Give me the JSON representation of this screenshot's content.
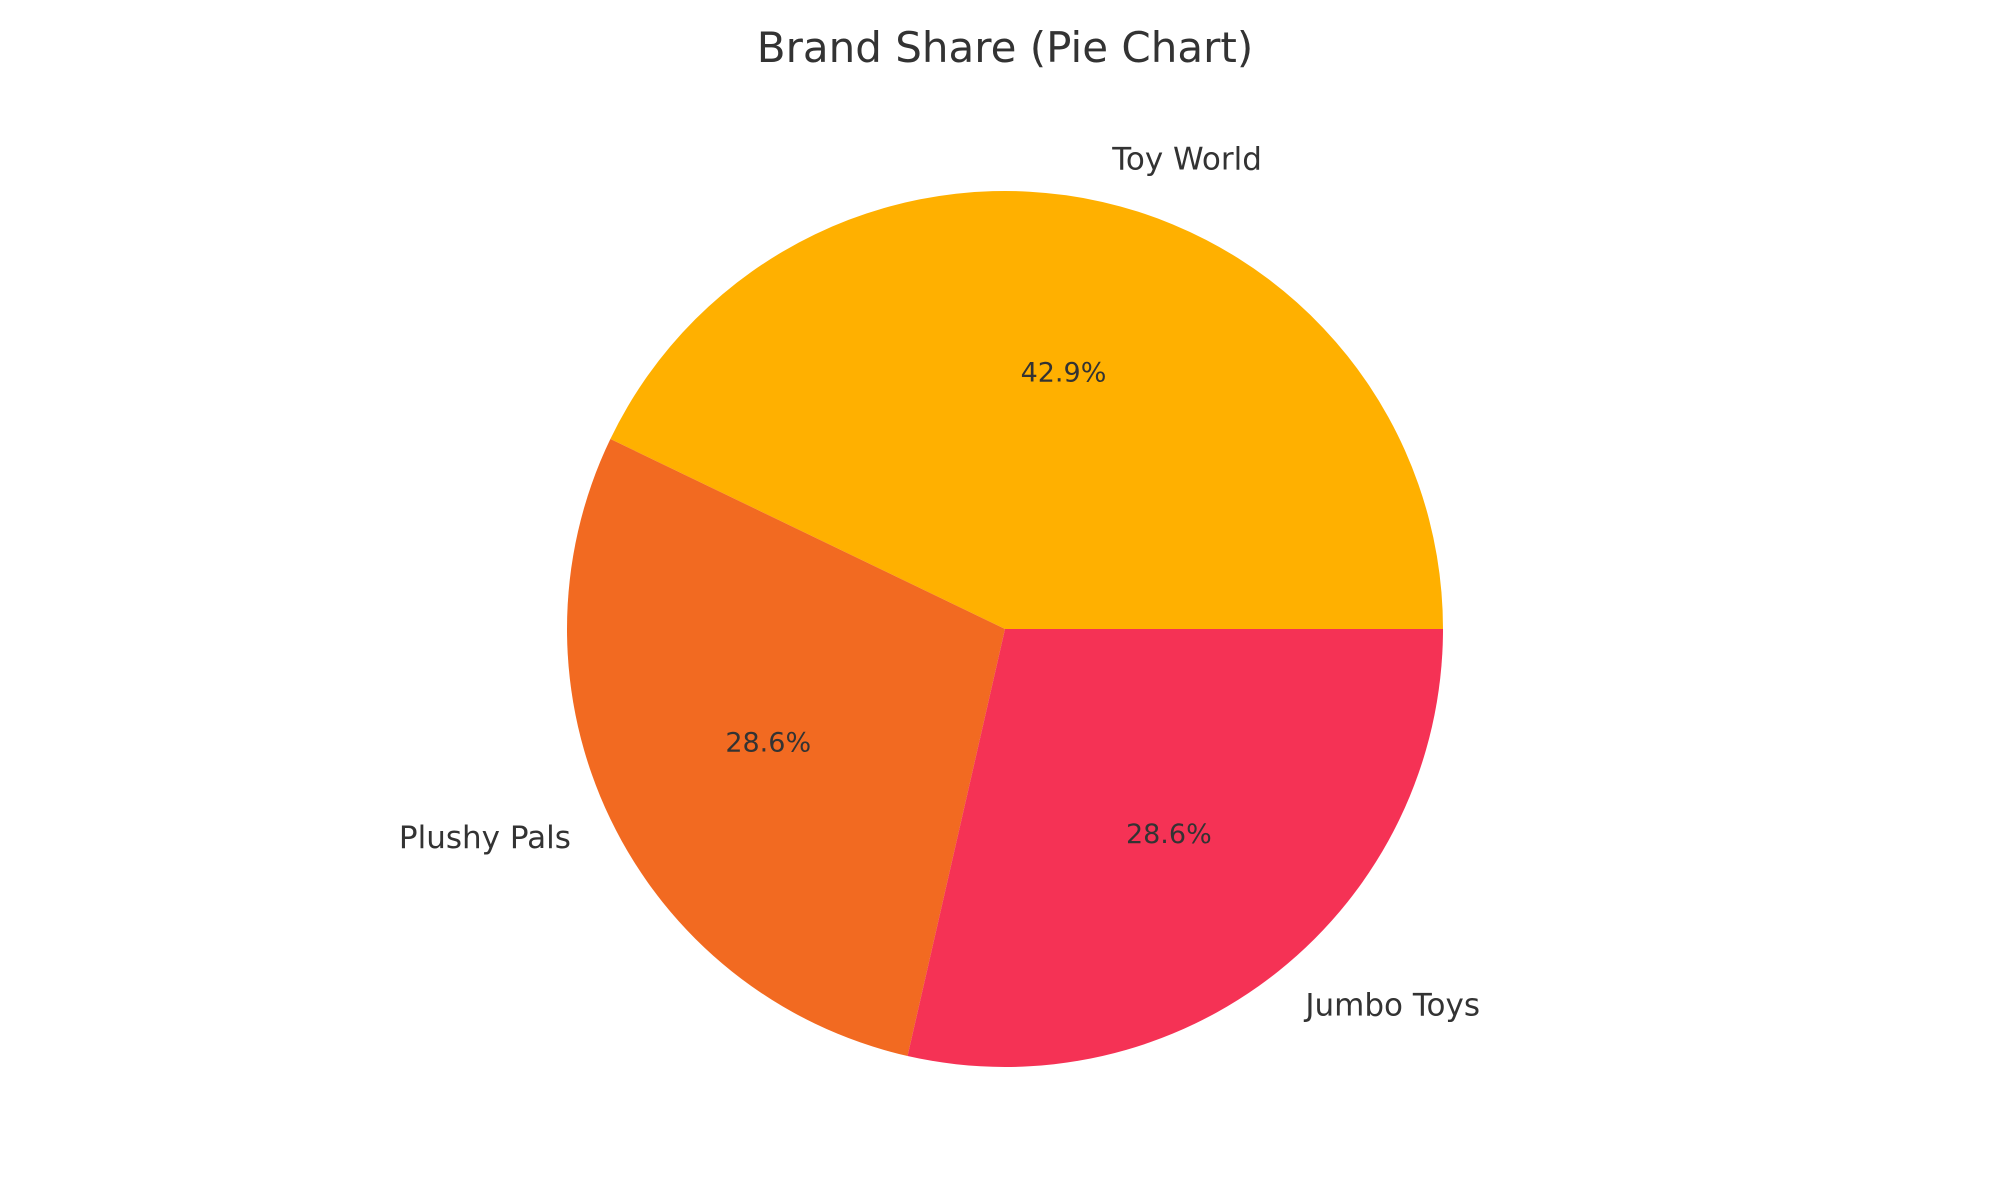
{
  "chart_data": {
    "type": "pie",
    "title": "Brand Share (Pie Chart)",
    "categories": [
      "Toy World",
      "Plushy Pals",
      "Jumbo Toys"
    ],
    "values": [
      42.9,
      28.6,
      28.6
    ],
    "percent_labels": [
      "42.9%",
      "28.6%",
      "28.6%"
    ],
    "colors": [
      "#FFB000",
      "#F26A21",
      "#F53255"
    ],
    "start_angle_deg": 0,
    "direction": "counterclockwise",
    "legend": "none"
  }
}
